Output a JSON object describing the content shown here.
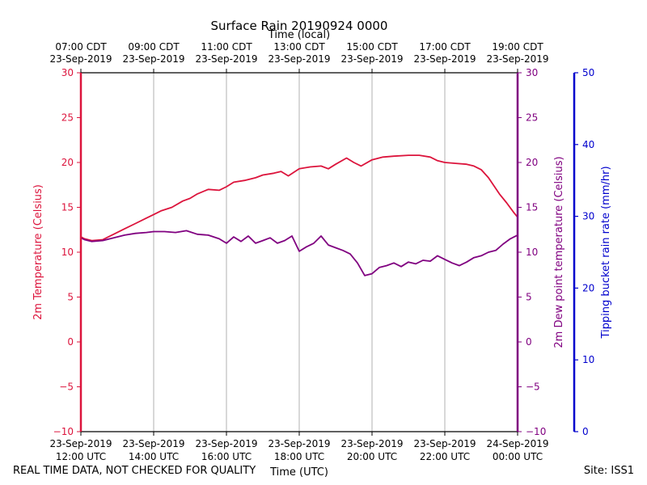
{
  "chart_data": {
    "type": "line",
    "title": "Surface Rain 20190924 0000",
    "top_axis_label": "Time (local)",
    "xlabel": "Time (UTC)",
    "ylabel_left": "2m Temperature (Celsius)",
    "ylabel_mid": "2m Dew point temperature (Celsius)",
    "ylabel_right": "Tipping bucket rain rate (mm/hr)",
    "x_range_hours_utc": [
      12,
      24
    ],
    "ylim_left": [
      -10,
      30
    ],
    "ylim_right": [
      0,
      50
    ],
    "left_ticks": [
      "30",
      "25",
      "20",
      "15",
      "10",
      "5",
      "0",
      "−5",
      "−10"
    ],
    "right_ticks": [
      "50",
      "40",
      "30",
      "20",
      "10",
      "0"
    ],
    "bottom_ticks": [
      {
        "line1": "23-Sep-2019",
        "line2": "12:00 UTC"
      },
      {
        "line1": "23-Sep-2019",
        "line2": "14:00 UTC"
      },
      {
        "line1": "23-Sep-2019",
        "line2": "16:00 UTC"
      },
      {
        "line1": "23-Sep-2019",
        "line2": "18:00 UTC"
      },
      {
        "line1": "23-Sep-2019",
        "line2": "20:00 UTC"
      },
      {
        "line1": "23-Sep-2019",
        "line2": "22:00 UTC"
      },
      {
        "line1": "24-Sep-2019",
        "line2": "00:00 UTC"
      }
    ],
    "top_ticks": [
      {
        "line1": "07:00 CDT",
        "line2": "23-Sep-2019"
      },
      {
        "line1": "09:00 CDT",
        "line2": "23-Sep-2019"
      },
      {
        "line1": "11:00 CDT",
        "line2": "23-Sep-2019"
      },
      {
        "line1": "13:00 CDT",
        "line2": "23-Sep-2019"
      },
      {
        "line1": "15:00 CDT",
        "line2": "23-Sep-2019"
      },
      {
        "line1": "17:00 CDT",
        "line2": "23-Sep-2019"
      },
      {
        "line1": "19:00 CDT",
        "line2": "23-Sep-2019"
      }
    ],
    "grid": "vertical",
    "series": [
      {
        "color": "#dc143c",
        "x": [
          12.0,
          12.1,
          12.3,
          12.6,
          12.9,
          13.2,
          13.5,
          13.8,
          14.0,
          14.2,
          14.5,
          14.8,
          15.0,
          15.2,
          15.5,
          15.8,
          16.0,
          16.2,
          16.5,
          16.8,
          17.0,
          17.3,
          17.5,
          17.7,
          18.0,
          18.3,
          18.6,
          18.8,
          19.0,
          19.3,
          19.5,
          19.7,
          20.0,
          20.3,
          20.6,
          21.0,
          21.3,
          21.6,
          21.8,
          22.0,
          22.3,
          22.6,
          22.8,
          23.0,
          23.2,
          23.5,
          23.7,
          23.9,
          24.0
        ],
        "values": [
          11.7,
          11.5,
          11.3,
          11.4,
          12.0,
          12.6,
          13.2,
          13.8,
          14.2,
          14.6,
          15.0,
          15.7,
          16.0,
          16.5,
          17.0,
          16.9,
          17.3,
          17.8,
          18.0,
          18.3,
          18.6,
          18.8,
          19.0,
          18.5,
          19.3,
          19.5,
          19.6,
          19.3,
          19.8,
          20.5,
          20.0,
          19.6,
          20.3,
          20.6,
          20.7,
          20.8,
          20.8,
          20.6,
          20.2,
          20.0,
          19.9,
          19.8,
          19.6,
          19.2,
          18.3,
          16.5,
          15.5,
          14.4,
          13.9
        ]
      },
      {
        "color": "#800080",
        "x": [
          12.0,
          12.1,
          12.3,
          12.6,
          12.9,
          13.2,
          13.5,
          13.8,
          14.0,
          14.3,
          14.6,
          14.9,
          15.2,
          15.5,
          15.8,
          16.0,
          16.2,
          16.4,
          16.6,
          16.8,
          17.0,
          17.2,
          17.4,
          17.6,
          17.8,
          18.0,
          18.2,
          18.4,
          18.6,
          18.8,
          19.0,
          19.2,
          19.4,
          19.6,
          19.8,
          20.0,
          20.2,
          20.4,
          20.6,
          20.8,
          21.0,
          21.2,
          21.4,
          21.6,
          21.8,
          22.0,
          22.2,
          22.4,
          22.6,
          22.8,
          23.0,
          23.2,
          23.4,
          23.6,
          23.8,
          24.0
        ],
        "values": [
          11.6,
          11.4,
          11.2,
          11.3,
          11.6,
          11.9,
          12.1,
          12.2,
          12.3,
          12.3,
          12.2,
          12.4,
          12.0,
          11.9,
          11.5,
          11.0,
          11.7,
          11.2,
          11.8,
          11.0,
          11.3,
          11.6,
          11.0,
          11.3,
          11.8,
          10.1,
          10.6,
          11.0,
          11.8,
          10.8,
          10.5,
          10.2,
          9.8,
          8.8,
          7.4,
          7.6,
          8.3,
          8.5,
          8.8,
          8.4,
          8.9,
          8.7,
          9.1,
          9.0,
          9.6,
          9.2,
          8.8,
          8.5,
          8.9,
          9.4,
          9.6,
          10.0,
          10.2,
          10.9,
          11.5,
          11.9
        ]
      }
    ]
  },
  "footer": {
    "disclaimer": "REAL TIME DATA, NOT CHECKED FOR QUALITY",
    "site": "Site: ISS1"
  },
  "colors": {
    "temperature": "#dc143c",
    "dewpoint": "#800080",
    "rain": "#0000cd",
    "grid": "#b0b0b0"
  }
}
